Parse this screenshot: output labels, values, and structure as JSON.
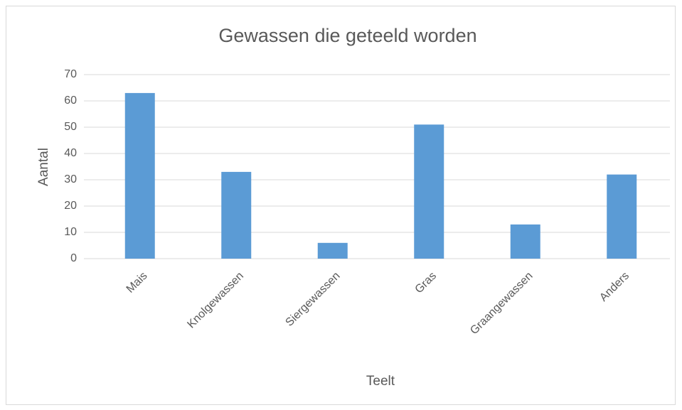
{
  "chart_data": {
    "type": "bar",
    "title": "Gewassen die geteeld worden",
    "x_label": "Teelt",
    "y_label": "Aantal",
    "categories": [
      "Mais",
      "Knolgewassen",
      "Siergewassen",
      "Gras",
      "Graangewassen",
      "Anders"
    ],
    "values": [
      63,
      33,
      6,
      51,
      13,
      32
    ],
    "color": "#5b9bd5",
    "ylim": [
      0,
      70
    ],
    "yticks": [
      0,
      10,
      20,
      30,
      40,
      50,
      60,
      70
    ],
    "grid": true
  }
}
